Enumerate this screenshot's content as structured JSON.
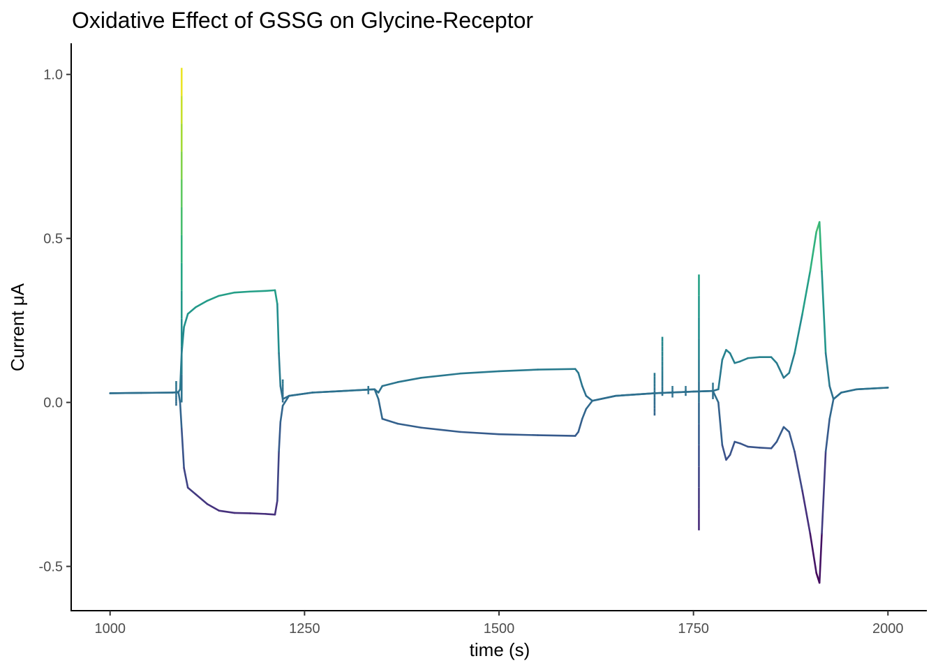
{
  "chart_data": {
    "type": "line",
    "title": "Oxidative Effect of GSSG on Glycine-Receptor",
    "xlabel": "time (s)",
    "ylabel": "Current μA",
    "xlim": [
      950,
      2050
    ],
    "ylim": [
      -0.635,
      1.095
    ],
    "x_ticks": [
      1000,
      1250,
      1500,
      1750,
      2000
    ],
    "x_tick_labels": [
      "1000",
      "1250",
      "1500",
      "1750",
      "2000"
    ],
    "y_ticks": [
      -0.5,
      0.0,
      0.5,
      1.0
    ],
    "y_tick_labels": [
      "-0.5",
      "0.0",
      "0.5",
      "1.0"
    ],
    "grid": false,
    "legend": "none",
    "color_scale": "viridis",
    "color_range": [
      -0.55,
      1.02
    ],
    "series": [
      {
        "points": [
          [
            1000,
            0.028
          ],
          [
            1040,
            0.029
          ],
          [
            1080,
            0.03
          ],
          [
            1088,
            0.032
          ],
          [
            1090,
            0.04
          ],
          [
            1092,
            0.15
          ],
          [
            1095,
            0.23
          ],
          [
            1100,
            0.27
          ],
          [
            1110,
            0.29
          ],
          [
            1125,
            0.31
          ],
          [
            1140,
            0.325
          ],
          [
            1160,
            0.335
          ],
          [
            1180,
            0.338
          ],
          [
            1200,
            0.34
          ],
          [
            1212,
            0.342
          ],
          [
            1215,
            0.3
          ],
          [
            1217,
            0.15
          ],
          [
            1219,
            0.05
          ],
          [
            1222,
            0.01
          ],
          [
            1230,
            0.02
          ],
          [
            1260,
            0.03
          ],
          [
            1300,
            0.035
          ],
          [
            1340,
            0.04
          ],
          [
            1345,
            0.03
          ],
          [
            1350,
            0.05
          ],
          [
            1370,
            0.062
          ],
          [
            1400,
            0.075
          ],
          [
            1450,
            0.088
          ],
          [
            1500,
            0.095
          ],
          [
            1550,
            0.1
          ],
          [
            1598,
            0.102
          ],
          [
            1602,
            0.09
          ],
          [
            1607,
            0.05
          ],
          [
            1612,
            0.02
          ],
          [
            1620,
            0.005
          ],
          [
            1650,
            0.02
          ],
          [
            1700,
            0.028
          ],
          [
            1750,
            0.033
          ],
          [
            1775,
            0.035
          ],
          [
            1782,
            0.04
          ],
          [
            1787,
            0.13
          ],
          [
            1792,
            0.16
          ],
          [
            1797,
            0.15
          ],
          [
            1803,
            0.12
          ],
          [
            1810,
            0.125
          ],
          [
            1820,
            0.135
          ],
          [
            1835,
            0.138
          ],
          [
            1850,
            0.138
          ],
          [
            1857,
            0.12
          ],
          [
            1866,
            0.075
          ],
          [
            1873,
            0.09
          ],
          [
            1880,
            0.15
          ],
          [
            1890,
            0.27
          ],
          [
            1900,
            0.4
          ],
          [
            1908,
            0.52
          ],
          [
            1912,
            0.55
          ],
          [
            1915,
            0.4
          ],
          [
            1920,
            0.15
          ],
          [
            1925,
            0.05
          ],
          [
            1930,
            0.01
          ],
          [
            1940,
            0.03
          ],
          [
            1960,
            0.04
          ],
          [
            2000,
            0.045
          ]
        ]
      },
      {
        "points": [
          [
            1000,
            0.028
          ],
          [
            1040,
            0.029
          ],
          [
            1080,
            0.03
          ],
          [
            1088,
            0.03
          ],
          [
            1090,
            0.0
          ],
          [
            1092,
            -0.08
          ],
          [
            1095,
            -0.2
          ],
          [
            1100,
            -0.26
          ],
          [
            1110,
            -0.28
          ],
          [
            1125,
            -0.31
          ],
          [
            1140,
            -0.33
          ],
          [
            1160,
            -0.337
          ],
          [
            1180,
            -0.338
          ],
          [
            1200,
            -0.34
          ],
          [
            1212,
            -0.342
          ],
          [
            1215,
            -0.3
          ],
          [
            1217,
            -0.15
          ],
          [
            1219,
            -0.06
          ],
          [
            1222,
            -0.01
          ],
          [
            1230,
            0.02
          ],
          [
            1260,
            0.03
          ],
          [
            1300,
            0.035
          ],
          [
            1340,
            0.04
          ],
          [
            1345,
            0.01
          ],
          [
            1350,
            -0.05
          ],
          [
            1370,
            -0.065
          ],
          [
            1400,
            -0.077
          ],
          [
            1450,
            -0.09
          ],
          [
            1500,
            -0.097
          ],
          [
            1550,
            -0.1
          ],
          [
            1598,
            -0.102
          ],
          [
            1602,
            -0.09
          ],
          [
            1607,
            -0.05
          ],
          [
            1612,
            -0.02
          ],
          [
            1620,
            0.005
          ],
          [
            1650,
            0.02
          ],
          [
            1700,
            0.028
          ],
          [
            1750,
            0.033
          ],
          [
            1775,
            0.035
          ],
          [
            1782,
            0.0
          ],
          [
            1787,
            -0.13
          ],
          [
            1792,
            -0.175
          ],
          [
            1797,
            -0.16
          ],
          [
            1803,
            -0.12
          ],
          [
            1810,
            -0.125
          ],
          [
            1820,
            -0.135
          ],
          [
            1835,
            -0.138
          ],
          [
            1850,
            -0.14
          ],
          [
            1857,
            -0.12
          ],
          [
            1866,
            -0.075
          ],
          [
            1873,
            -0.09
          ],
          [
            1880,
            -0.15
          ],
          [
            1890,
            -0.27
          ],
          [
            1900,
            -0.4
          ],
          [
            1908,
            -0.52
          ],
          [
            1912,
            -0.55
          ],
          [
            1915,
            -0.4
          ],
          [
            1920,
            -0.15
          ],
          [
            1925,
            -0.05
          ],
          [
            1930,
            0.01
          ],
          [
            1940,
            0.03
          ],
          [
            1960,
            0.04
          ],
          [
            2000,
            0.045
          ]
        ]
      }
    ],
    "spikes": [
      {
        "x": 1092,
        "y_low": 0.0,
        "y_high": 1.02
      },
      {
        "x": 1757,
        "y_low": -0.39,
        "y_high": 0.39
      },
      {
        "x": 1710,
        "y_low": 0.02,
        "y_high": 0.2
      },
      {
        "x": 1700,
        "y_low": -0.04,
        "y_high": 0.09
      },
      {
        "x": 1085,
        "y_low": -0.01,
        "y_high": 0.065
      },
      {
        "x": 1222,
        "y_low": 0.0,
        "y_high": 0.07
      },
      {
        "x": 1332,
        "y_low": 0.025,
        "y_high": 0.05
      },
      {
        "x": 1740,
        "y_low": 0.02,
        "y_high": 0.05
      },
      {
        "x": 1775,
        "y_low": 0.01,
        "y_high": 0.06
      },
      {
        "x": 1723,
        "y_low": 0.015,
        "y_high": 0.05
      }
    ]
  }
}
